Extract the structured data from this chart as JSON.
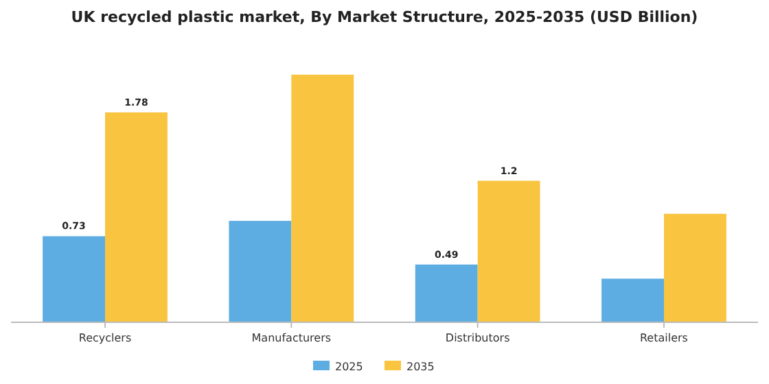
{
  "chart_data": {
    "type": "bar",
    "title": "UK recycled plastic market, By Market Structure, 2025-2035 (USD Billion)",
    "categories": [
      "Recyclers",
      "Manufacturers",
      "Distributors",
      "Retailers"
    ],
    "series": [
      {
        "name": "2025",
        "color": "#5dade2",
        "values": [
          0.73,
          0.86,
          0.49,
          0.37
        ],
        "value_labels": [
          "0.73",
          null,
          "0.49",
          null
        ]
      },
      {
        "name": "2035",
        "color": "#f9c440",
        "values": [
          1.78,
          2.1,
          1.2,
          0.92
        ],
        "value_labels": [
          "1.78",
          null,
          "1.2",
          null
        ]
      }
    ],
    "legend": "bottom",
    "grid": false
  }
}
